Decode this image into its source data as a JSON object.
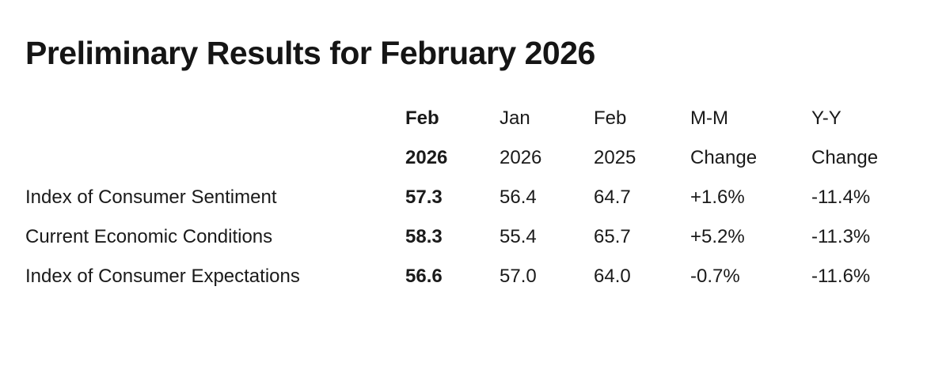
{
  "page": {
    "background_color": "#ffffff",
    "text_color": "#1a1a1a"
  },
  "title": "Preliminary Results for February 2026",
  "chart_data": {
    "type": "table",
    "title": "Preliminary Results for February 2026",
    "row_header_column": "",
    "columns": [
      {
        "line1": "Feb",
        "line2": "2026",
        "emphasis": "bold"
      },
      {
        "line1": "Jan",
        "line2": "2026",
        "emphasis": "regular"
      },
      {
        "line1": "Feb",
        "line2": "2025",
        "emphasis": "regular"
      },
      {
        "line1": "M-M",
        "line2": "Change",
        "emphasis": "regular"
      },
      {
        "line1": "Y-Y",
        "line2": "Change",
        "emphasis": "regular"
      }
    ],
    "rows": [
      {
        "label": "Index of Consumer Sentiment",
        "values": [
          "57.3",
          "56.4",
          "64.7",
          "+1.6%",
          "-11.4%"
        ]
      },
      {
        "label": "Current Economic Conditions",
        "values": [
          "58.3",
          "55.4",
          "65.7",
          "+5.2%",
          "-11.3%"
        ]
      },
      {
        "label": "Index of Consumer Expectations",
        "values": [
          "56.6",
          "57.0",
          "64.0",
          "-0.7%",
          "-11.6%"
        ]
      }
    ]
  }
}
